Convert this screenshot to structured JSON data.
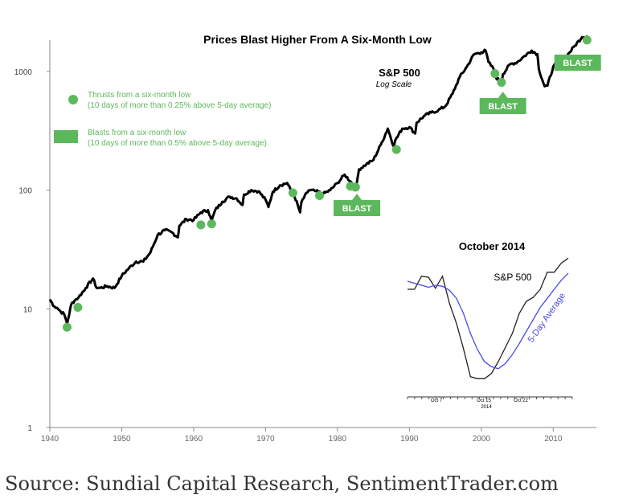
{
  "colors": {
    "price": "#000000",
    "thrust": "#5cb85c",
    "blast_fill": "#5cb85c",
    "blast_text": "#ffffff",
    "inset_average": "#4a4ae8",
    "axis": "#888888"
  },
  "chart_data": [
    {
      "type": "line",
      "title": "Prices Blast Higher From A Six-Month Low",
      "series_label": "S&P 500",
      "scale_label": "Log Scale",
      "yscale": "log",
      "ylim": [
        1,
        2200
      ],
      "xlim": [
        1940,
        2016
      ],
      "y_ticks": [
        1,
        10,
        100,
        1000
      ],
      "y_tick_labels": [
        "1",
        "10",
        "100",
        "1000"
      ],
      "x_ticks": [
        1940,
        1950,
        1960,
        1970,
        1980,
        1990,
        2000,
        2010
      ],
      "x_tick_labels": [
        "1940",
        "1950",
        "1960",
        "1970",
        "1980",
        "1990",
        "2000",
        "2010"
      ],
      "series": [
        {
          "x": [
            1940,
            1940.6,
            1941,
            1941.5,
            1942,
            1942.4,
            1943,
            1943.6,
            1944,
            1945,
            1946,
            1946.5,
            1947,
            1948,
            1949,
            1950,
            1951,
            1952,
            1953,
            1954,
            1955,
            1956,
            1957,
            1957.8,
            1958,
            1959,
            1960,
            1961,
            1962,
            1962.5,
            1963,
            1964,
            1965,
            1966,
            1966.8,
            1967,
            1968,
            1969,
            1970,
            1970.4,
            1971,
            1972,
            1973,
            1973.5,
            1974,
            1974.8,
            1975,
            1976,
            1977,
            1978,
            1979,
            1980,
            1981,
            1982,
            1982.6,
            1983,
            1984,
            1985,
            1986,
            1987,
            1987.8,
            1988,
            1989,
            1990,
            1990.8,
            1991,
            1992,
            1993,
            1994,
            1995,
            1996,
            1997,
            1998,
            1999,
            2000,
            2000.6,
            2001,
            2001.7,
            2002,
            2002.8,
            2003,
            2004,
            2005,
            2006,
            2007,
            2007.8,
            2008,
            2008.8,
            2009.2,
            2010,
            2011,
            2012,
            2013,
            2014,
            2014.8
          ],
          "values": [
            12,
            10.5,
            10.2,
            9.5,
            9,
            7.5,
            11,
            12,
            12.5,
            15,
            18,
            15,
            15,
            15.5,
            15,
            19,
            22,
            25,
            25,
            30,
            42,
            46,
            44,
            40,
            50,
            57,
            56,
            65,
            68,
            55,
            68,
            80,
            88,
            85,
            75,
            92,
            100,
            98,
            83,
            72,
            97,
            110,
            115,
            100,
            90,
            65,
            80,
            100,
            98,
            93,
            100,
            115,
            135,
            115,
            107,
            150,
            165,
            180,
            240,
            330,
            235,
            260,
            330,
            340,
            300,
            370,
            420,
            450,
            470,
            510,
            650,
            900,
            1100,
            1400,
            1450,
            1500,
            1200,
            1050,
            900,
            800,
            950,
            1150,
            1200,
            1350,
            1500,
            1400,
            1050,
            750,
            760,
            1100,
            1250,
            1380,
            1650,
            1950,
            2000
          ]
        }
      ],
      "thrusts": [
        {
          "x": 1942.4,
          "y": 7.0
        },
        {
          "x": 1943.9,
          "y": 10.3
        },
        {
          "x": 1961.0,
          "y": 51
        },
        {
          "x": 1962.5,
          "y": 52
        },
        {
          "x": 1973.8,
          "y": 95
        },
        {
          "x": 1977.5,
          "y": 90
        },
        {
          "x": 1981.8,
          "y": 108
        },
        {
          "x": 1982.5,
          "y": 106
        },
        {
          "x": 1988.2,
          "y": 220
        },
        {
          "x": 2001.9,
          "y": 960
        },
        {
          "x": 2002.8,
          "y": 810
        },
        {
          "x": 2014.7,
          "y": 1840
        }
      ],
      "blasts": [
        {
          "x": 1982.7,
          "label": "BLAST"
        },
        {
          "x": 2003.0,
          "label": "BLAST"
        },
        {
          "x": 2013.4,
          "label": "BLAST"
        }
      ],
      "legend": [
        {
          "kind": "thrust",
          "title": "Thrusts from a six-month low",
          "detail": "(10 days of more than 0.25% above 5-day average)"
        },
        {
          "kind": "blast",
          "title": "Blasts from a six-month low",
          "detail": "(10 days of more than 0.5% above 5-day average)"
        }
      ]
    },
    {
      "type": "line",
      "title": "October 2014",
      "x_tick_labels": [
        "Oct 7",
        "Oct 15",
        "Oct 22"
      ],
      "x_tick_year": "2014",
      "series": [
        {
          "name": "S&P 500",
          "x": [
            0,
            1,
            2,
            3,
            4,
            5,
            6,
            7,
            8,
            9,
            10,
            11,
            12,
            13,
            14,
            15,
            16,
            17,
            18,
            19,
            20,
            21,
            22,
            23
          ],
          "values": [
            1964,
            1964,
            1977,
            1976,
            1965,
            1977,
            1950,
            1930,
            1905,
            1877,
            1875,
            1875,
            1880,
            1892,
            1906,
            1920,
            1940,
            1952,
            1956,
            1964,
            1981,
            1981,
            1990,
            1995
          ]
        },
        {
          "name": "5-Day Average",
          "x": [
            0,
            1,
            2,
            3,
            4,
            5,
            6,
            7,
            8,
            9,
            10,
            11,
            12,
            13,
            14,
            15,
            16,
            17,
            18,
            19,
            20,
            21,
            22,
            23
          ],
          "values": [
            1972,
            1970,
            1968,
            1966,
            1968,
            1967,
            1963,
            1955,
            1940,
            1920,
            1904,
            1892,
            1887,
            1885,
            1890,
            1899,
            1910,
            1922,
            1934,
            1946,
            1955,
            1964,
            1973,
            1980
          ]
        }
      ],
      "ylim": [
        1868,
        2000
      ]
    }
  ],
  "source_caption": "Source: Sundial Capital Research, SentimentTrader.com"
}
